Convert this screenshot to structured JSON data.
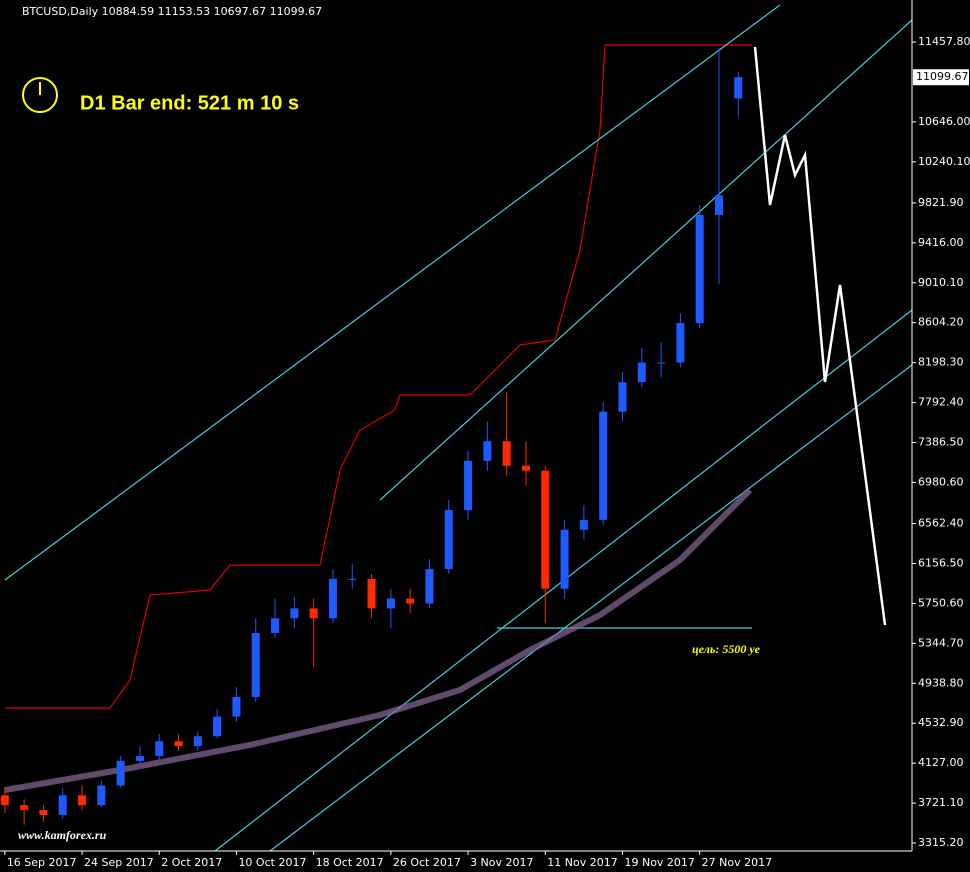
{
  "chart_data": {
    "type": "candlestick",
    "title": "BTCUSD,Daily  10884.59 11153.53 10697.67 11099.67",
    "annotations": [
      "D1 Bar end: 521 m 10 s",
      "цель: 5500 уе",
      "www.kamforex.ru"
    ],
    "x": [
      0,
      2,
      4,
      6,
      8,
      10,
      12,
      14,
      16,
      18,
      20,
      22,
      24,
      26,
      28,
      30,
      32,
      34,
      36,
      38,
      40,
      42,
      44,
      46,
      48,
      50,
      52,
      54,
      56,
      58,
      60,
      62,
      64,
      66,
      68,
      70,
      72,
      74,
      76
    ],
    "open": [
      3800,
      3700,
      3650,
      3600,
      3800,
      3700,
      3900,
      4150,
      4200,
      4350,
      4300,
      4400,
      4600,
      4800,
      5450,
      5600,
      5700,
      5600,
      6000,
      6000,
      5700,
      5800,
      5750,
      6100,
      6700,
      7200,
      7400,
      7150,
      7100,
      5900,
      6500,
      6600,
      7700,
      8000,
      8200,
      8200,
      8600,
      9700,
      10884.59
    ],
    "high": [
      3880,
      3760,
      3700,
      3870,
      3900,
      3950,
      4200,
      4300,
      4420,
      4420,
      4450,
      4680,
      4900,
      5600,
      5800,
      5820,
      5800,
      6100,
      6150,
      6050,
      5900,
      5900,
      6200,
      6800,
      7300,
      7600,
      7900,
      7400,
      7150,
      6600,
      6750,
      7800,
      8100,
      8350,
      8400,
      8700,
      9800,
      11400,
      11153.53
    ],
    "low": [
      3620,
      3500,
      3530,
      3560,
      3650,
      3680,
      3880,
      4100,
      4150,
      4250,
      4250,
      4380,
      4550,
      4750,
      5400,
      5500,
      5100,
      5550,
      5900,
      5600,
      5500,
      5650,
      5700,
      6050,
      6600,
      7100,
      7050,
      6950,
      5550,
      5800,
      6400,
      6550,
      7600,
      7950,
      8050,
      8150,
      8550,
      9000,
      10697.67
    ],
    "close": [
      3700,
      3650,
      3600,
      3800,
      3700,
      3900,
      4150,
      4200,
      4350,
      4300,
      4400,
      4600,
      4800,
      5450,
      5600,
      5700,
      5600,
      6000,
      6000,
      5700,
      5800,
      5750,
      6100,
      6700,
      7200,
      7400,
      7150,
      7100,
      5900,
      6500,
      6600,
      7700,
      8000,
      8200,
      8200,
      8600,
      9700,
      9900,
      11099.67
    ],
    "up_color": "#1e5aff",
    "down_color": "#ff2a00",
    "xlim": [
      -0.5,
      94
    ],
    "xticks": [
      {
        "value": 0,
        "label": "16 Sep 2017"
      },
      {
        "value": 8,
        "label": "24 Sep 2017"
      },
      {
        "value": 16,
        "label": "2 Oct 2017"
      },
      {
        "value": 24,
        "label": "10 Oct 2017"
      },
      {
        "value": 32,
        "label": "18 Oct 2017"
      },
      {
        "value": 40,
        "label": "26 Oct 2017"
      },
      {
        "value": 48,
        "label": "3 Nov 2017"
      },
      {
        "value": 56,
        "label": "11 Nov 2017"
      },
      {
        "value": 64,
        "label": "19 Nov 2017"
      },
      {
        "value": 72,
        "label": "27 Nov 2017"
      }
    ],
    "ylim": [
      3233.9,
      11884.8
    ],
    "yticks": [
      {
        "value": 3315.2,
        "label": "3315.20"
      },
      {
        "value": 3721.1,
        "label": "3721.10"
      },
      {
        "value": 4127,
        "label": "4127.00"
      },
      {
        "value": 4532.9,
        "label": "4532.90"
      },
      {
        "value": 4938.8,
        "label": "4938.80"
      },
      {
        "value": 5344.7,
        "label": "5344.70"
      },
      {
        "value": 5750.6,
        "label": "5750.60"
      },
      {
        "value": 6156.5,
        "label": "6156.50"
      },
      {
        "value": 6562.4,
        "label": "6562.40"
      },
      {
        "value": 6980.6,
        "label": "6980.60"
      },
      {
        "value": 7386.5,
        "label": "7386.50"
      },
      {
        "value": 7792.4,
        "label": "7792.40"
      },
      {
        "value": 8198.3,
        "label": "8198.30"
      },
      {
        "value": 8604.2,
        "label": "8604.20"
      },
      {
        "value": 9010.1,
        "label": "9010.10"
      },
      {
        "value": 9416,
        "label": "9416.00"
      },
      {
        "value": 9821.9,
        "label": "9821.90"
      },
      {
        "value": 10240.1,
        "label": "10240.10"
      },
      {
        "value": 10646,
        "label": "10646.00"
      },
      {
        "value": 11457.8,
        "label": "11457.80"
      }
    ],
    "price_label": {
      "value": 11099.67,
      "label": "11099.67"
    }
  }
}
